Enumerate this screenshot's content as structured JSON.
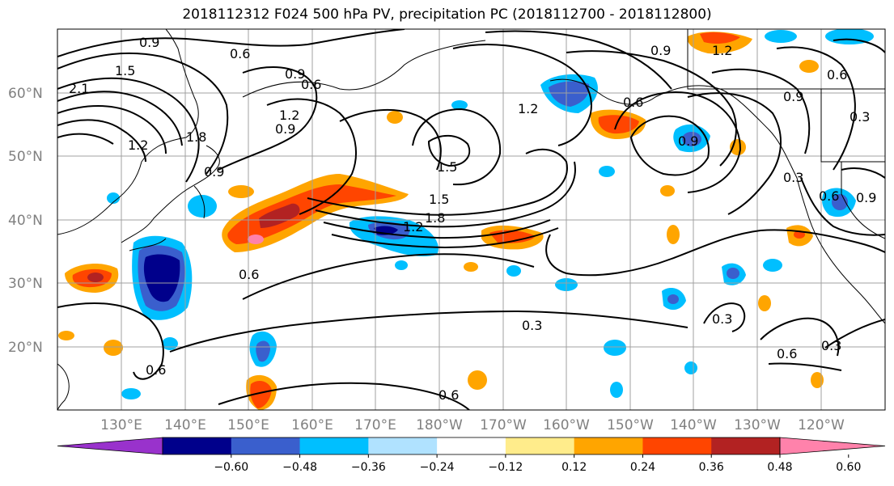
{
  "title": "2018112312 F024 500 hPa PV, precipitation PC (2018112700 - 2018112800)",
  "lat_labels": [
    "60°N",
    "50°N",
    "40°N",
    "30°N",
    "20°N"
  ],
  "lon_labels": [
    "130°E",
    "140°E",
    "150°E",
    "160°E",
    "170°E",
    "180°W",
    "170°W",
    "160°W",
    "150°W",
    "140°W",
    "130°W",
    "120°W"
  ],
  "colorbar": {
    "colors": [
      "#9932cc",
      "#00008b",
      "#3a5fcd",
      "#00bfff",
      "#b0e2ff",
      "#ffffff",
      "#ffec8b",
      "#ffa500",
      "#ff4500",
      "#b22222",
      "#ff82ab"
    ],
    "tick_labels": [
      "−0.60",
      "−0.48",
      "−0.36",
      "−0.24",
      "−0.12",
      "0.12",
      "0.24",
      "0.36",
      "0.48",
      "0.60"
    ]
  },
  "contour_labels": [
    "0.9",
    "0.6",
    "1.5",
    "2.1",
    "1.2",
    "1.8",
    "0.9",
    "0.6",
    "0.9",
    "1.2",
    "1.5",
    "1.2",
    "1.5",
    "1.8",
    "0.9",
    "0.6",
    "1.2",
    "0.9",
    "0.6",
    "0.3",
    "0.9",
    "0.6",
    "0.3",
    "0.6",
    "0.3",
    "0.6",
    "0.3",
    "0.6",
    "0.3",
    "0.6",
    "0.9",
    "1.2",
    "0.9"
  ],
  "map_colors": {
    "contour": "#000000",
    "grid": "#a0a0a0",
    "coast": "#000000"
  }
}
